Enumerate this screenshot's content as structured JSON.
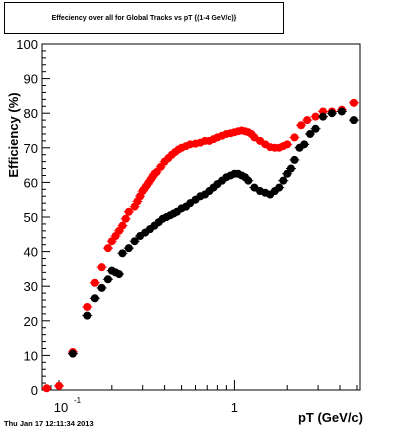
{
  "chart_data": {
    "type": "scatter",
    "title": "Effeciency over all for Global Tracks vs pT {(1-4 GeV/c)}",
    "xlabel": "pT (GeV/c)",
    "ylabel": "Efficiency (%)",
    "x_scale": "log",
    "xlim": [
      0.08,
      5.2
    ],
    "ylim": [
      0,
      100
    ],
    "x_tick_labels": [
      "10^-1",
      "1"
    ],
    "y_ticks": [
      0,
      10,
      20,
      30,
      40,
      50,
      60,
      70,
      80,
      90,
      100
    ],
    "grid": false,
    "series": [
      {
        "color": "#ff0000",
        "x": [
          0.085,
          0.1,
          0.12,
          0.145,
          0.16,
          0.175,
          0.19,
          0.2,
          0.21,
          0.22,
          0.23,
          0.24,
          0.25,
          0.27,
          0.28,
          0.29,
          0.3,
          0.31,
          0.32,
          0.33,
          0.34,
          0.35,
          0.36,
          0.38,
          0.4,
          0.42,
          0.44,
          0.46,
          0.48,
          0.5,
          0.53,
          0.56,
          0.6,
          0.64,
          0.68,
          0.72,
          0.76,
          0.8,
          0.85,
          0.9,
          0.95,
          1.0,
          1.05,
          1.1,
          1.15,
          1.2,
          1.25,
          1.3,
          1.4,
          1.5,
          1.6,
          1.7,
          1.8,
          1.9,
          2.0,
          2.2,
          2.4,
          2.6,
          2.9,
          3.2,
          3.6,
          4.1,
          4.8
        ],
        "values": [
          0.5,
          1.2,
          11,
          24,
          31,
          35.5,
          41,
          43,
          44.5,
          46,
          47.5,
          49.5,
          51.5,
          53,
          54.5,
          56,
          57.5,
          58.5,
          59.5,
          60.5,
          61.5,
          62.5,
          63,
          64.5,
          66,
          67,
          68,
          68.8,
          69.5,
          70,
          70.5,
          71,
          71.2,
          71.5,
          72,
          72,
          72.5,
          73,
          73.5,
          74,
          74.2,
          74.5,
          74.8,
          75,
          74.8,
          74.5,
          74,
          73,
          72,
          71,
          70.2,
          70,
          70,
          70.5,
          71,
          73,
          76.5,
          78,
          79,
          80.5,
          80.5,
          81,
          83
        ]
      },
      {
        "color": "#000000",
        "x": [
          0.12,
          0.145,
          0.16,
          0.175,
          0.19,
          0.2,
          0.21,
          0.22,
          0.23,
          0.25,
          0.27,
          0.29,
          0.31,
          0.33,
          0.35,
          0.37,
          0.39,
          0.41,
          0.43,
          0.45,
          0.47,
          0.5,
          0.53,
          0.56,
          0.6,
          0.64,
          0.68,
          0.72,
          0.76,
          0.8,
          0.85,
          0.9,
          0.95,
          1.0,
          1.05,
          1.1,
          1.15,
          1.2,
          1.3,
          1.4,
          1.5,
          1.6,
          1.7,
          1.8,
          1.9,
          2.0,
          2.1,
          2.2,
          2.35,
          2.5,
          2.7,
          2.9,
          3.2,
          3.6,
          4.1,
          4.8
        ],
        "values": [
          10.5,
          21.5,
          26.5,
          29.5,
          32,
          34.5,
          34,
          33.5,
          39.5,
          41,
          43,
          44.5,
          45.5,
          46.5,
          47.5,
          48.5,
          49.5,
          50,
          50.5,
          51,
          51.5,
          52.5,
          53,
          54,
          55,
          56,
          56.5,
          57.5,
          58.5,
          59.5,
          60.5,
          61.5,
          62,
          62.5,
          62.5,
          62,
          61.5,
          60.5,
          58.5,
          57.5,
          57,
          56.5,
          57.5,
          58.5,
          60.5,
          62.5,
          64,
          66.5,
          70,
          71,
          74,
          75.5,
          79,
          80,
          80.5,
          78
        ]
      }
    ]
  },
  "footer_text": "Thu Jan 17 12:11:34 2013"
}
